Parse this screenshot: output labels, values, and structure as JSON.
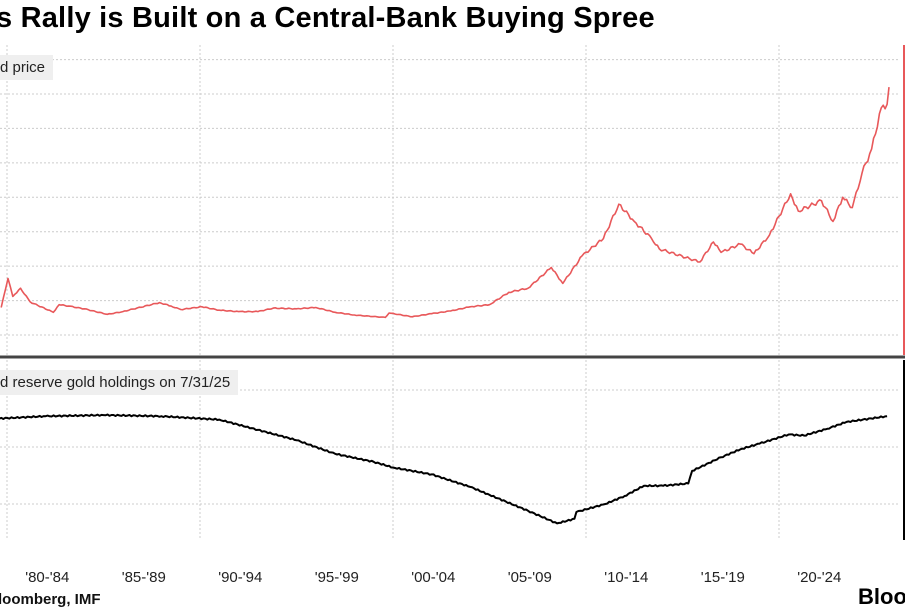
{
  "title": "s Rally is Built on a Central-Bank Buying Spree",
  "source": "loomberg, IMF",
  "logo": "Bloo",
  "colors": {
    "price": "#e8585a",
    "holdings": "#000000",
    "grid": "#cccccc",
    "divider": "#444444"
  },
  "chart_data": [
    {
      "type": "line",
      "title": "d price",
      "legend": "d price",
      "x_unit": "year",
      "ylim": [
        0,
        4000
      ],
      "y_grid": [
        0,
        500,
        1000,
        1500,
        2000,
        2500,
        3000,
        3500,
        4000
      ],
      "series": [
        {
          "name": "d price",
          "points": [
            [
              1979.7,
              400
            ],
            [
              1980.05,
              820
            ],
            [
              1980.3,
              560
            ],
            [
              1980.7,
              680
            ],
            [
              1981.2,
              480
            ],
            [
              1982.4,
              330
            ],
            [
              1982.7,
              440
            ],
            [
              1983.2,
              420
            ],
            [
              1984,
              380
            ],
            [
              1985.2,
              300
            ],
            [
              1986,
              340
            ],
            [
              1987.9,
              470
            ],
            [
              1988.5,
              420
            ],
            [
              1989,
              370
            ],
            [
              1990.1,
              410
            ],
            [
              1991,
              360
            ],
            [
              1992,
              340
            ],
            [
              1993,
              340
            ],
            [
              1993.8,
              390
            ],
            [
              1995,
              380
            ],
            [
              1996,
              400
            ],
            [
              1997,
              330
            ],
            [
              1998,
              290
            ],
            [
              1999.6,
              255
            ],
            [
              1999.8,
              320
            ],
            [
              2001,
              265
            ],
            [
              2002,
              310
            ],
            [
              2003,
              350
            ],
            [
              2004,
              410
            ],
            [
              2005,
              440
            ],
            [
              2006,
              620
            ],
            [
              2007,
              680
            ],
            [
              2008.2,
              980
            ],
            [
              2008.8,
              750
            ],
            [
              2009.8,
              1150
            ],
            [
              2010.9,
              1400
            ],
            [
              2011.7,
              1900
            ],
            [
              2012.5,
              1650
            ],
            [
              2013.4,
              1400
            ],
            [
              2013.8,
              1250
            ],
            [
              2015.9,
              1060
            ],
            [
              2016.6,
              1350
            ],
            [
              2017,
              1200
            ],
            [
              2018,
              1320
            ],
            [
              2018.7,
              1180
            ],
            [
              2019.5,
              1450
            ],
            [
              2020.6,
              2050
            ],
            [
              2021,
              1800
            ],
            [
              2022.2,
              1950
            ],
            [
              2022.8,
              1650
            ],
            [
              2023.3,
              2000
            ],
            [
              2023.8,
              1850
            ],
            [
              2024.3,
              2350
            ],
            [
              2024.8,
              2700
            ],
            [
              2025.3,
              3300
            ],
            [
              2025.6,
              3350
            ],
            [
              2025.7,
              3600
            ]
          ]
        }
      ]
    },
    {
      "type": "line",
      "title": "d reserve gold holdings on 7/31/25",
      "legend": "d reserve gold holdings on 7/31/25",
      "x_unit": "year",
      "ylim": [
        26000,
        40000
      ],
      "y_grid": [
        30000,
        35000,
        40000
      ],
      "series": [
        {
          "name": "d reserve gold holdings on 7/31/25",
          "points": [
            [
              1979.6,
              37500
            ],
            [
              1982,
              37700
            ],
            [
              1985,
              37800
            ],
            [
              1988,
              37700
            ],
            [
              1991,
              37400
            ],
            [
              1993,
              36500
            ],
            [
              1995,
              35600
            ],
            [
              1997,
              34400
            ],
            [
              1999,
              33700
            ],
            [
              2000,
              33200
            ],
            [
              2002,
              32600
            ],
            [
              2004,
              31500
            ],
            [
              2005,
              30800
            ],
            [
              2007,
              29400
            ],
            [
              2008.5,
              28300
            ],
            [
              2009.4,
              28700
            ],
            [
              2009.5,
              29300
            ],
            [
              2011,
              30000
            ],
            [
              2012,
              30700
            ],
            [
              2013,
              31600
            ],
            [
              2014,
              31600
            ],
            [
              2015.3,
              31800
            ],
            [
              2015.5,
              32900
            ],
            [
              2017,
              34100
            ],
            [
              2018,
              34800
            ],
            [
              2019,
              35300
            ],
            [
              2020.5,
              36100
            ],
            [
              2021.3,
              36000
            ],
            [
              2022.5,
              36600
            ],
            [
              2023.5,
              37200
            ],
            [
              2025.6,
              37700
            ]
          ]
        }
      ]
    }
  ],
  "x_tick_labels": [
    {
      "label": "'80-'84",
      "center": 1982.5
    },
    {
      "label": "'85-'89",
      "center": 1987.5
    },
    {
      "label": "'90-'94",
      "center": 1992.5
    },
    {
      "label": "'95-'99",
      "center": 1997.5
    },
    {
      "label": "'00-'04",
      "center": 2002.5
    },
    {
      "label": "'05-'09",
      "center": 2007.5
    },
    {
      "label": "'10-'14",
      "center": 2012.5
    },
    {
      "label": "'15-'19",
      "center": 2017.5
    },
    {
      "label": "'20-'24",
      "center": 2022.5
    }
  ],
  "x_grid_years": [
    1980,
    1990,
    2000,
    2010,
    2020
  ]
}
